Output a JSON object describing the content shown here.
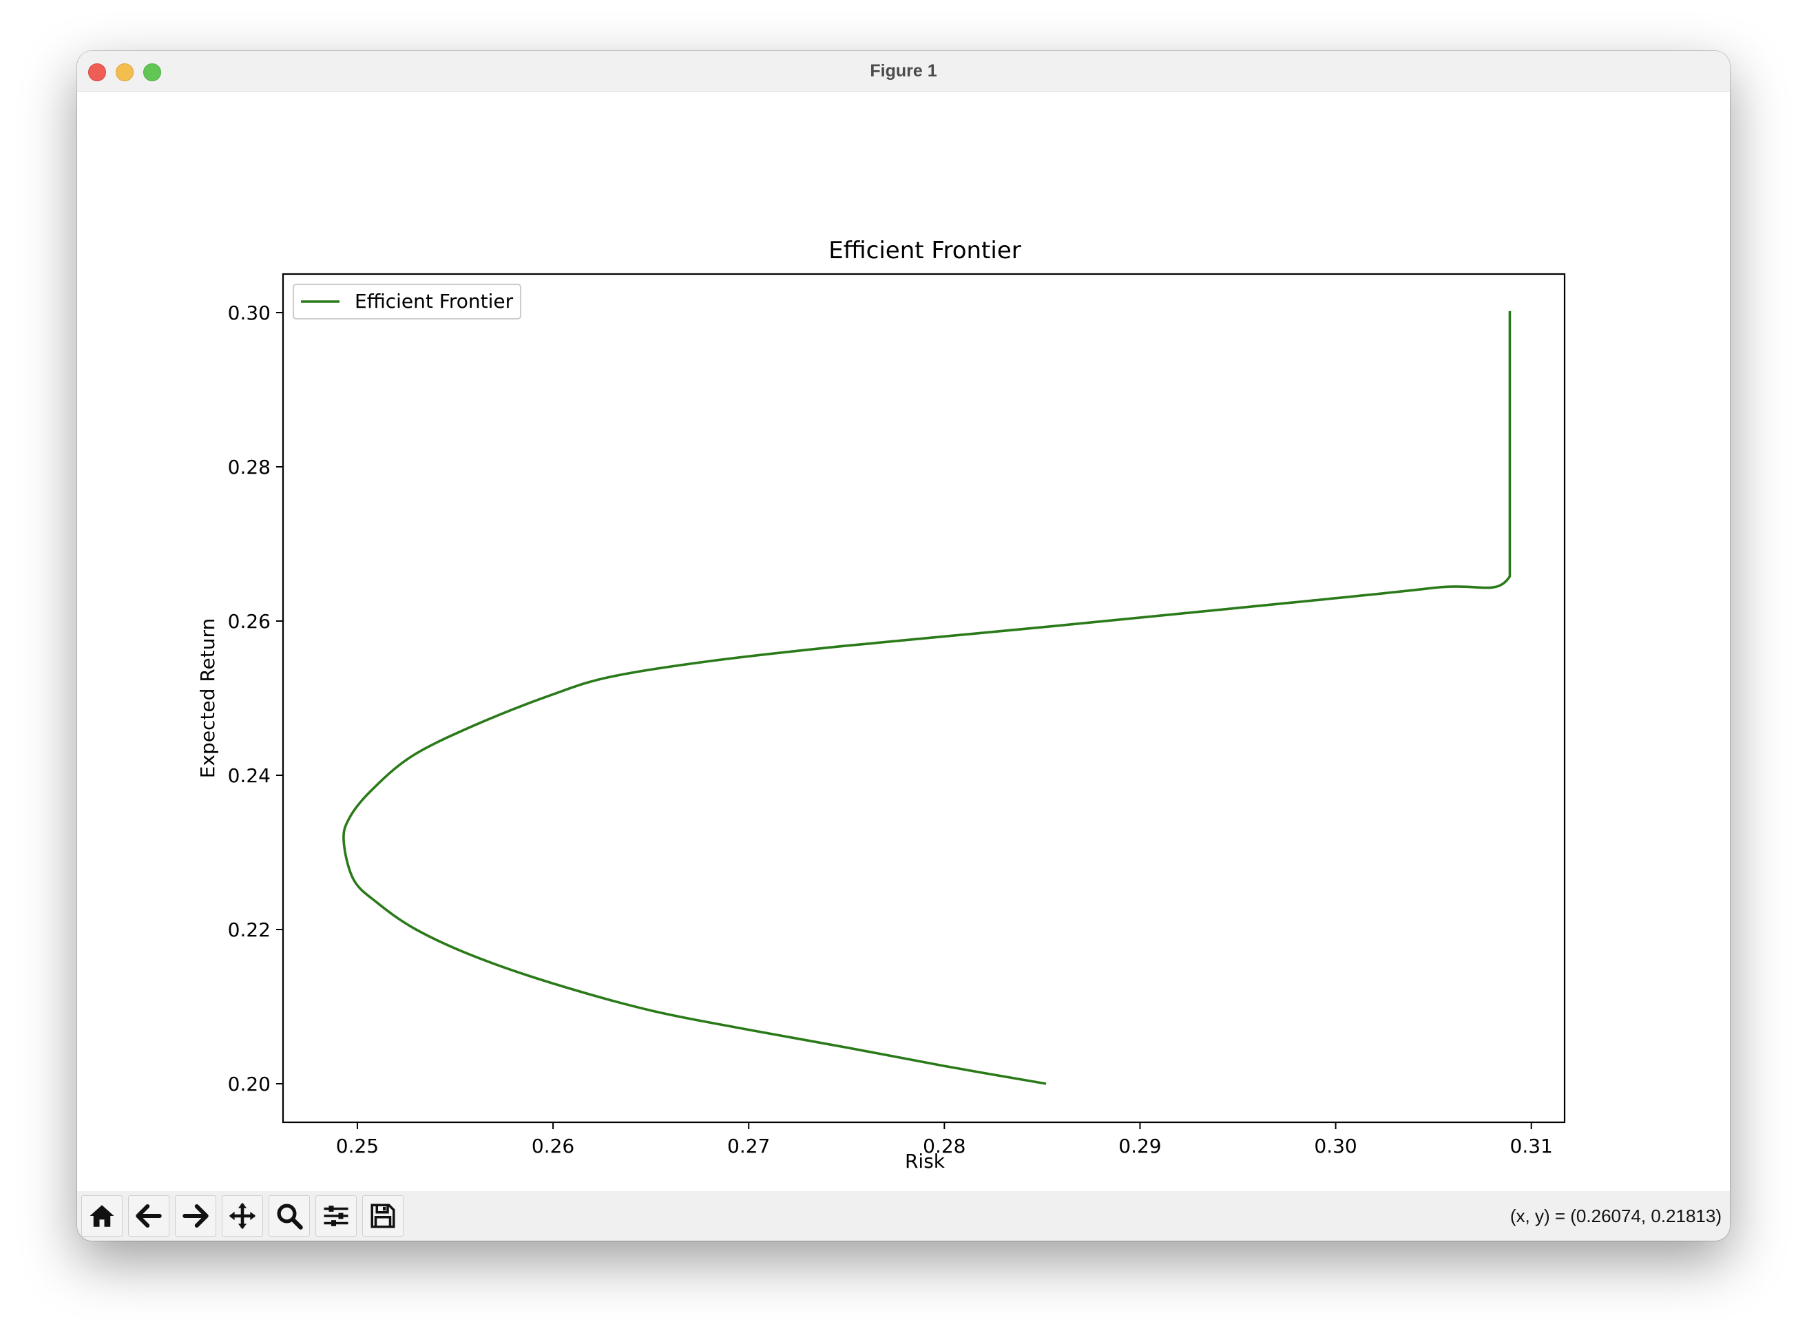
{
  "window": {
    "title": "Figure 1"
  },
  "toolbar": {
    "buttons": [
      {
        "name": "home-button",
        "icon": "home-icon"
      },
      {
        "name": "back-button",
        "icon": "arrow-left-icon"
      },
      {
        "name": "forward-button",
        "icon": "arrow-right-icon"
      },
      {
        "name": "pan-button",
        "icon": "move-icon"
      },
      {
        "name": "zoom-button",
        "icon": "magnifier-icon"
      },
      {
        "name": "configure-subplots-button",
        "icon": "sliders-icon"
      },
      {
        "name": "save-button",
        "icon": "floppy-disk-icon"
      }
    ],
    "coords": "(x, y) = (0.26074, 0.21813)"
  },
  "chart_data": {
    "type": "line",
    "title": "Efficient Frontier",
    "xlabel": "Risk",
    "ylabel": "Expected Return",
    "xlim": [
      0.2462,
      0.3117
    ],
    "ylim": [
      0.195,
      0.305
    ],
    "xticks": [
      "0.25",
      "0.26",
      "0.27",
      "0.28",
      "0.29",
      "0.30",
      "0.31"
    ],
    "yticks": [
      "0.20",
      "0.22",
      "0.24",
      "0.26",
      "0.28",
      "0.30"
    ],
    "grid": false,
    "legend": {
      "position": "upper-left",
      "entries": [
        "Efficient Frontier"
      ]
    },
    "series": [
      {
        "name": "Efficient Frontier",
        "color": "#2a7a1a",
        "x": [
          0.2852,
          0.28,
          0.275,
          0.27,
          0.265,
          0.26,
          0.256,
          0.253,
          0.251,
          0.2498,
          0.2493,
          0.2496,
          0.2507,
          0.2528,
          0.256,
          0.26,
          0.263,
          0.268,
          0.275,
          0.285,
          0.295,
          0.305,
          0.3089,
          0.3089,
          0.3089
        ],
        "y": [
          0.2,
          0.2023,
          0.2047,
          0.207,
          0.2095,
          0.213,
          0.2165,
          0.22,
          0.2235,
          0.2265,
          0.2315,
          0.2345,
          0.238,
          0.2425,
          0.2465,
          0.2505,
          0.2528,
          0.2548,
          0.2568,
          0.2592,
          0.2617,
          0.2643,
          0.2658,
          0.28,
          0.3002
        ]
      }
    ]
  }
}
